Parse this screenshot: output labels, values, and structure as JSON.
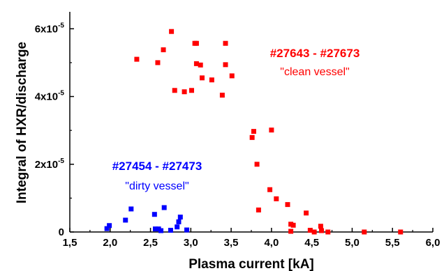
{
  "chart_data": {
    "type": "scatter",
    "xlabel": "Plasma current [kA]",
    "ylabel": "Integral of HXR/discharge",
    "xlim": [
      1.5,
      6.0
    ],
    "ylim": [
      0,
      6.5e-05
    ],
    "x_ticks": [
      "1,5",
      "2,0",
      "2,5",
      "3,0",
      "3,5",
      "4,0",
      "4,5",
      "5,0",
      "5,5",
      "6,0"
    ],
    "y_ticks": [
      {
        "mantissa": "0",
        "exp": ""
      },
      {
        "mantissa": "2x10",
        "exp": "-5"
      },
      {
        "mantissa": "4x10",
        "exp": "-5"
      },
      {
        "mantissa": "6x10",
        "exp": "-5"
      }
    ],
    "grid": false,
    "legend": "none",
    "series": [
      {
        "color": "#ff0000",
        "annotation": {
          "title": "#27643 - #27673",
          "subtitle": "\"clean vessel\""
        },
        "points": [
          [
            2.33,
            5.1e-05
          ],
          [
            2.59,
            5e-05
          ],
          [
            2.66,
            5.38e-05
          ],
          [
            2.76,
            5.92e-05
          ],
          [
            2.8,
            4.18e-05
          ],
          [
            2.92,
            4.14e-05
          ],
          [
            3.01,
            4.18e-05
          ],
          [
            3.05,
            5.57e-05
          ],
          [
            3.07,
            5.57e-05
          ],
          [
            3.07,
            4.97e-05
          ],
          [
            3.12,
            4.93e-05
          ],
          [
            3.14,
            4.55e-05
          ],
          [
            3.26,
            4.49e-05
          ],
          [
            3.39,
            4.04e-05
          ],
          [
            3.43,
            5.57e-05
          ],
          [
            3.43,
            4.94e-05
          ],
          [
            3.51,
            4.61e-05
          ],
          [
            3.76,
            2.79e-05
          ],
          [
            3.78,
            2.97e-05
          ],
          [
            3.82,
            2e-05
          ],
          [
            3.84,
            6.5e-06
          ],
          [
            3.98,
            1.25e-05
          ],
          [
            4.0,
            3.01e-05
          ],
          [
            4.06,
            9.8e-06
          ],
          [
            4.2,
            8.1e-06
          ],
          [
            4.24,
            2.3e-06
          ],
          [
            4.27,
            2e-06
          ],
          [
            4.24,
            2e-07
          ],
          [
            4.43,
            5.6e-06
          ],
          [
            4.48,
            5e-07
          ],
          [
            4.53,
            0.0
          ],
          [
            4.61,
            1.7e-06
          ],
          [
            4.62,
            4e-07
          ],
          [
            4.7,
            0.0
          ],
          [
            5.15,
            0.0
          ],
          [
            5.6,
            0.0
          ]
        ]
      },
      {
        "color": "#0000ff",
        "annotation": {
          "title": "#27454 - #27473",
          "subtitle": "\"dirty vessel\""
        },
        "points": [
          [
            1.96,
            1e-06
          ],
          [
            1.99,
            1.9e-06
          ],
          [
            2.19,
            3.5e-06
          ],
          [
            2.26,
            6.8e-06
          ],
          [
            2.55,
            5.2e-06
          ],
          [
            2.56,
            9e-07
          ],
          [
            2.6,
            9e-07
          ],
          [
            2.63,
            4e-07
          ],
          [
            2.67,
            7.2e-06
          ],
          [
            2.75,
            5e-07
          ],
          [
            2.83,
            1.5e-06
          ],
          [
            2.85,
            3e-06
          ],
          [
            2.87,
            4.4e-06
          ],
          [
            2.95,
            6e-07
          ]
        ]
      }
    ]
  }
}
